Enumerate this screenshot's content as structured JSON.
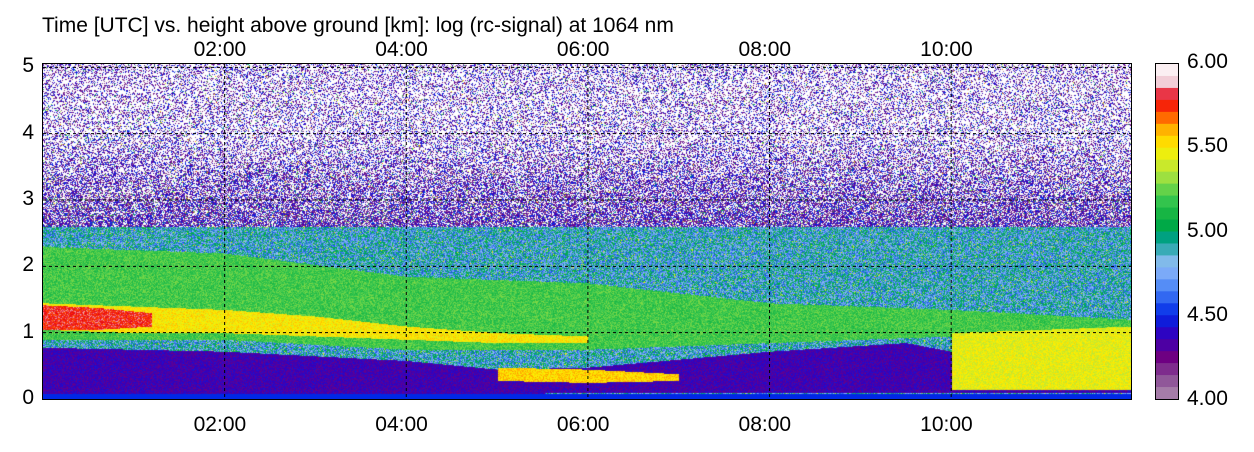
{
  "chart_data": {
    "type": "heatmap",
    "title": "Time [UTC] vs. height above ground [km]: log (rc-signal) at 1064 nm",
    "x_unit": "hours UTC",
    "xlim": [
      0.0,
      11.98
    ],
    "x_ticks": [
      "02:00",
      "04:00",
      "06:00",
      "08:00",
      "10:00"
    ],
    "x_tick_values": [
      2,
      4,
      6,
      8,
      10
    ],
    "ylim": [
      0,
      5.05
    ],
    "y_ticks": [
      "0",
      "1",
      "2",
      "3",
      "4",
      "5"
    ],
    "y_tick_values": [
      0,
      1,
      2,
      3,
      4,
      5
    ],
    "colorbar": {
      "range": [
        4.0,
        6.0
      ],
      "tick_labels": [
        "6.00",
        "5.50",
        "5.00",
        "4.50",
        "4.00"
      ],
      "tick_values": [
        6.0,
        5.5,
        5.0,
        4.5,
        4.0
      ]
    },
    "grid": "dashed",
    "layers": [
      {
        "x": [
          0,
          2,
          4,
          5,
          6,
          8,
          9.5,
          10,
          12
        ],
        "top": [
          0.78,
          0.72,
          0.58,
          0.45,
          0.48,
          0.72,
          0.85,
          0.72,
          0.62
        ],
        "bottom": [
          0.08,
          0.08,
          0.08,
          0.08,
          0.1,
          0.1,
          0.1,
          0.1,
          0.1
        ],
        "value": 4.35
      },
      {
        "x": [
          0,
          2,
          4,
          6,
          8,
          10,
          12
        ],
        "top": [
          2.3,
          2.2,
          1.85,
          1.75,
          1.45,
          1.35,
          1.2
        ],
        "bottom": [
          0.9,
          0.9,
          0.75,
          0.75,
          0.85,
          0.95,
          0.9
        ],
        "value": 5.2
      },
      {
        "x": [
          0,
          1,
          2,
          3,
          4,
          5,
          6
        ],
        "top": [
          1.45,
          1.4,
          1.35,
          1.25,
          1.1,
          1.0,
          0.95
        ],
        "bottom": [
          1.05,
          1.0,
          1.0,
          0.95,
          0.9,
          0.85,
          0.85
        ],
        "value": 5.5
      },
      {
        "x": [
          0,
          0.6,
          1.2
        ],
        "top": [
          1.42,
          1.38,
          1.3
        ],
        "bottom": [
          1.05,
          1.05,
          1.1
        ],
        "value": 5.78
      },
      {
        "x": [
          10,
          11,
          12
        ],
        "top": [
          1.0,
          1.05,
          1.1
        ],
        "bottom": [
          0.15,
          0.15,
          0.15
        ],
        "value": 5.45
      },
      {
        "x": [
          5.0,
          6.0,
          7.0
        ],
        "top": [
          0.48,
          0.45,
          0.38
        ],
        "bottom": [
          0.28,
          0.25,
          0.28
        ],
        "value": 5.55
      }
    ],
    "noise_above_km": 2.6,
    "noise_range": [
      4.0,
      6.0
    ]
  }
}
